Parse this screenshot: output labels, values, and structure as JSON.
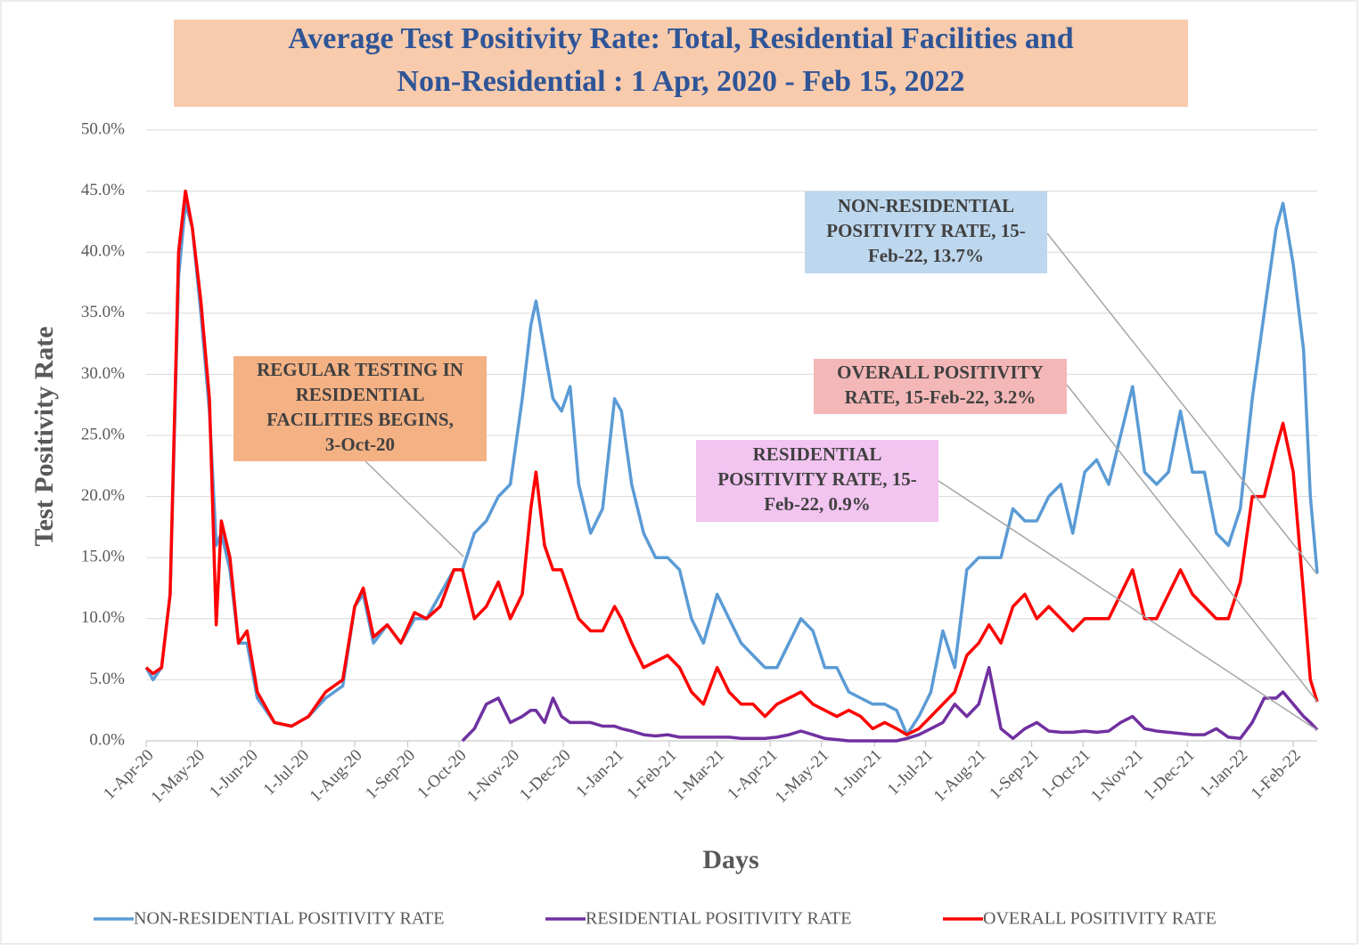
{
  "chart_data": {
    "type": "line",
    "title": [
      "Average Test Positivity Rate: Total,  Residential Facilities and",
      "Non-Residential : 1 Apr, 2020 - Feb 15, 2022"
    ],
    "y_label": "Test Positivity Rate",
    "x_label": "Days",
    "xlim": [
      "2020-04-01",
      "2022-02-15"
    ],
    "ylim": [
      0,
      50
    ],
    "yticks": [
      {
        "value": 0,
        "label": "0.0%"
      },
      {
        "value": 5,
        "label": "5.0%"
      },
      {
        "value": 10,
        "label": "10.0%"
      },
      {
        "value": 15,
        "label": "15.0%"
      },
      {
        "value": 20,
        "label": "20.0%"
      },
      {
        "value": 25,
        "label": "25.0%"
      },
      {
        "value": 30,
        "label": "30.0%"
      },
      {
        "value": 35,
        "label": "35.0%"
      },
      {
        "value": 40,
        "label": "40.0%"
      },
      {
        "value": 45,
        "label": "45.0%"
      },
      {
        "value": 50,
        "label": "50.0%"
      }
    ],
    "xticks": [
      {
        "value": "2020-04-01",
        "label": "1-Apr-20"
      },
      {
        "value": "2020-05-01",
        "label": "1-May-20"
      },
      {
        "value": "2020-06-01",
        "label": "1-Jun-20"
      },
      {
        "value": "2020-07-01",
        "label": "1-Jul-20"
      },
      {
        "value": "2020-08-01",
        "label": "1-Aug-20"
      },
      {
        "value": "2020-09-01",
        "label": "1-Sep-20"
      },
      {
        "value": "2020-10-01",
        "label": "1-Oct-20"
      },
      {
        "value": "2020-11-01",
        "label": "1-Nov-20"
      },
      {
        "value": "2020-12-01",
        "label": "1-Dec-20"
      },
      {
        "value": "2021-01-01",
        "label": "1-Jan-21"
      },
      {
        "value": "2021-02-01",
        "label": "1-Feb-21"
      },
      {
        "value": "2021-03-01",
        "label": "1-Mar-21"
      },
      {
        "value": "2021-04-01",
        "label": "1-Apr-21"
      },
      {
        "value": "2021-05-01",
        "label": "1-May-21"
      },
      {
        "value": "2021-06-01",
        "label": "1-Jun-21"
      },
      {
        "value": "2021-07-01",
        "label": "1-Jul-21"
      },
      {
        "value": "2021-08-01",
        "label": "1-Aug-21"
      },
      {
        "value": "2021-09-01",
        "label": "1-Sep-21"
      },
      {
        "value": "2021-10-01",
        "label": "1-Oct-21"
      },
      {
        "value": "2021-11-01",
        "label": "1-Nov-21"
      },
      {
        "value": "2021-12-01",
        "label": "1-Dec-21"
      },
      {
        "value": "2022-01-01",
        "label": "1-Jan-22"
      },
      {
        "value": "2022-02-01",
        "label": "1-Feb-22"
      }
    ],
    "grid": true,
    "legend": "bottom",
    "x": [
      "2020-04-01",
      "2020-04-05",
      "2020-04-10",
      "2020-04-15",
      "2020-04-20",
      "2020-04-24",
      "2020-04-28",
      "2020-05-03",
      "2020-05-08",
      "2020-05-12",
      "2020-05-15",
      "2020-05-20",
      "2020-05-25",
      "2020-05-30",
      "2020-06-05",
      "2020-06-15",
      "2020-06-25",
      "2020-07-05",
      "2020-07-15",
      "2020-07-25",
      "2020-08-01",
      "2020-08-06",
      "2020-08-12",
      "2020-08-20",
      "2020-08-28",
      "2020-09-05",
      "2020-09-12",
      "2020-09-20",
      "2020-09-28",
      "2020-10-03",
      "2020-10-10",
      "2020-10-17",
      "2020-10-24",
      "2020-10-31",
      "2020-11-07",
      "2020-11-12",
      "2020-11-15",
      "2020-11-20",
      "2020-11-25",
      "2020-11-30",
      "2020-12-05",
      "2020-12-10",
      "2020-12-17",
      "2020-12-24",
      "2020-12-31",
      "2021-01-04",
      "2021-01-10",
      "2021-01-17",
      "2021-01-24",
      "2021-01-31",
      "2021-02-07",
      "2021-02-14",
      "2021-02-21",
      "2021-03-01",
      "2021-03-08",
      "2021-03-15",
      "2021-03-22",
      "2021-03-29",
      "2021-04-05",
      "2021-04-12",
      "2021-04-19",
      "2021-04-26",
      "2021-05-03",
      "2021-05-10",
      "2021-05-17",
      "2021-05-24",
      "2021-05-31",
      "2021-06-07",
      "2021-06-14",
      "2021-06-20",
      "2021-06-27",
      "2021-07-04",
      "2021-07-11",
      "2021-07-18",
      "2021-07-25",
      "2021-08-01",
      "2021-08-07",
      "2021-08-14",
      "2021-08-21",
      "2021-08-28",
      "2021-09-04",
      "2021-09-11",
      "2021-09-18",
      "2021-09-25",
      "2021-10-02",
      "2021-10-09",
      "2021-10-16",
      "2021-10-23",
      "2021-10-30",
      "2021-11-06",
      "2021-11-13",
      "2021-11-20",
      "2021-11-27",
      "2021-12-04",
      "2021-12-11",
      "2021-12-18",
      "2021-12-25",
      "2022-01-01",
      "2022-01-08",
      "2022-01-15",
      "2022-01-22",
      "2022-01-26",
      "2022-02-01",
      "2022-02-07",
      "2022-02-11",
      "2022-02-15"
    ],
    "series": [
      {
        "name": "NON-RESIDENTIAL POSITIVITY RATE",
        "color": "#5b9bd5",
        "values": [
          6,
          5,
          6,
          12,
          38,
          44,
          42,
          35,
          27,
          16,
          17,
          14,
          8,
          8,
          3.5,
          1.5,
          1.2,
          2,
          3.5,
          4.5,
          11,
          12,
          8,
          9.5,
          8,
          10,
          10,
          12,
          14,
          14,
          17,
          18,
          20,
          21,
          28,
          34,
          36,
          32,
          28,
          27,
          29,
          21,
          17,
          19,
          28,
          27,
          21,
          17,
          15,
          15,
          14,
          10,
          8,
          12,
          10,
          8,
          7,
          6,
          6,
          8,
          10,
          9,
          6,
          6,
          4,
          3.5,
          3,
          3,
          2.5,
          0.5,
          2,
          4,
          9,
          6,
          14,
          15,
          15,
          15,
          19,
          18,
          18,
          20,
          21,
          17,
          22,
          23,
          21,
          25,
          29,
          22,
          21,
          22,
          27,
          22,
          22,
          17,
          16,
          19,
          28,
          35,
          42,
          44,
          39,
          32,
          20,
          13.7
        ]
      },
      {
        "name": "RESIDENTIAL POSITIVITY RATE",
        "color": "#7030a0",
        "values": [
          null,
          null,
          null,
          null,
          null,
          null,
          null,
          null,
          null,
          null,
          null,
          null,
          null,
          null,
          null,
          null,
          null,
          null,
          null,
          null,
          null,
          null,
          null,
          null,
          null,
          null,
          null,
          null,
          null,
          0,
          1,
          3,
          3.5,
          1.5,
          2,
          2.5,
          2.5,
          1.5,
          3.5,
          2,
          1.5,
          1.5,
          1.5,
          1.2,
          1.2,
          1,
          0.8,
          0.5,
          0.4,
          0.5,
          0.3,
          0.3,
          0.3,
          0.3,
          0.3,
          0.2,
          0.2,
          0.2,
          0.3,
          0.5,
          0.8,
          0.5,
          0.2,
          0.1,
          0,
          0,
          0,
          0,
          0,
          0.2,
          0.5,
          1,
          1.5,
          3,
          2,
          3,
          6,
          1,
          0.2,
          1,
          1.5,
          0.8,
          0.7,
          0.7,
          0.8,
          0.7,
          0.8,
          1.5,
          2,
          1,
          0.8,
          0.7,
          0.6,
          0.5,
          0.5,
          1,
          0.3,
          0.2,
          1.5,
          3.5,
          3.5,
          4,
          3,
          2,
          1.5,
          0.9
        ]
      },
      {
        "name": "OVERALL POSITIVITY RATE",
        "color": "#ff0000",
        "values": [
          6,
          5.5,
          6,
          12,
          40,
          45,
          42,
          36,
          28,
          9.5,
          18,
          15,
          8,
          9,
          4,
          1.5,
          1.2,
          2,
          4,
          5,
          11,
          12.5,
          8.5,
          9.5,
          8,
          10.5,
          10,
          11,
          14,
          14,
          10,
          11,
          13,
          10,
          12,
          19,
          22,
          16,
          14,
          14,
          12,
          10,
          9,
          9,
          11,
          10,
          8,
          6,
          6.5,
          7,
          6,
          4,
          3,
          6,
          4,
          3,
          3,
          2,
          3,
          3.5,
          4,
          3,
          2.5,
          2,
          2.5,
          2,
          1,
          1.5,
          1,
          0.5,
          1,
          2,
          3,
          4,
          7,
          8,
          9.5,
          8,
          11,
          12,
          10,
          11,
          10,
          9,
          10,
          10,
          10,
          12,
          14,
          10,
          10,
          12,
          14,
          12,
          11,
          10,
          10,
          13,
          20,
          20,
          24,
          26,
          22,
          12,
          5,
          3.2
        ]
      }
    ],
    "annotations": [
      {
        "text": [
          "REGULAR TESTING IN",
          "RESIDENTIAL",
          "FACILITIES BEGINS,",
          "3-Oct-20"
        ]
      },
      {
        "text": [
          "NON-RESIDENTIAL",
          "POSITIVITY RATE, 15-",
          "Feb-22, 13.7%"
        ]
      },
      {
        "text": [
          "OVERALL POSITIVITY",
          "RATE, 15-Feb-22, 3.2%"
        ]
      },
      {
        "text": [
          "RESIDENTIAL",
          "POSITIVITY RATE, 15-",
          "Feb-22, 0.9%"
        ]
      }
    ]
  }
}
